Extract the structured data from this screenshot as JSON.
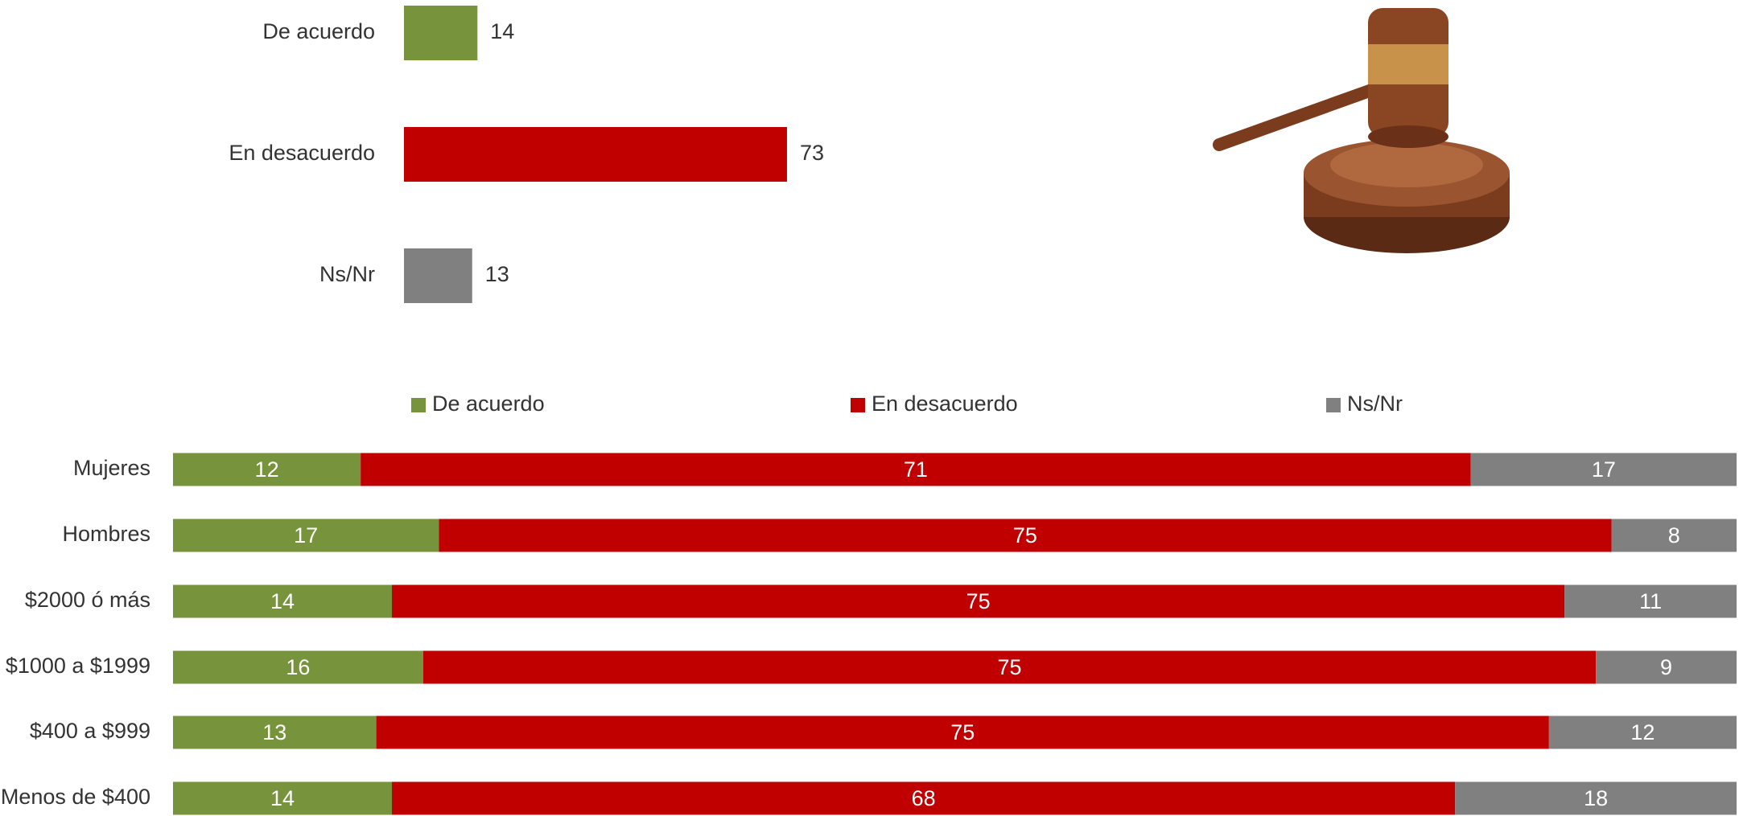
{
  "chart_data": [
    {
      "type": "bar",
      "orientation": "horizontal",
      "categories": [
        "De acuerdo",
        "En desacuerdo",
        "Ns/Nr"
      ],
      "values": [
        14,
        73,
        13
      ],
      "colors": [
        "#77933c",
        "#c00000",
        "#808080"
      ]
    },
    {
      "type": "stacked_bar",
      "orientation": "horizontal",
      "legend": "top",
      "categories": [
        "Mujeres",
        "Hombres",
        "$2000 ó más",
        "$1000 a $1999",
        "$400 a $999",
        "Menos de $400"
      ],
      "series": [
        {
          "name": "De acuerdo",
          "color": "#77933c",
          "values": [
            12,
            17,
            14,
            16,
            13,
            14
          ]
        },
        {
          "name": "En desacuerdo",
          "color": "#c00000",
          "values": [
            71,
            75,
            75,
            75,
            75,
            68
          ]
        },
        {
          "name": "Ns/Nr",
          "color": "#808080",
          "values": [
            17,
            8,
            11,
            9,
            12,
            18
          ]
        }
      ]
    }
  ]
}
